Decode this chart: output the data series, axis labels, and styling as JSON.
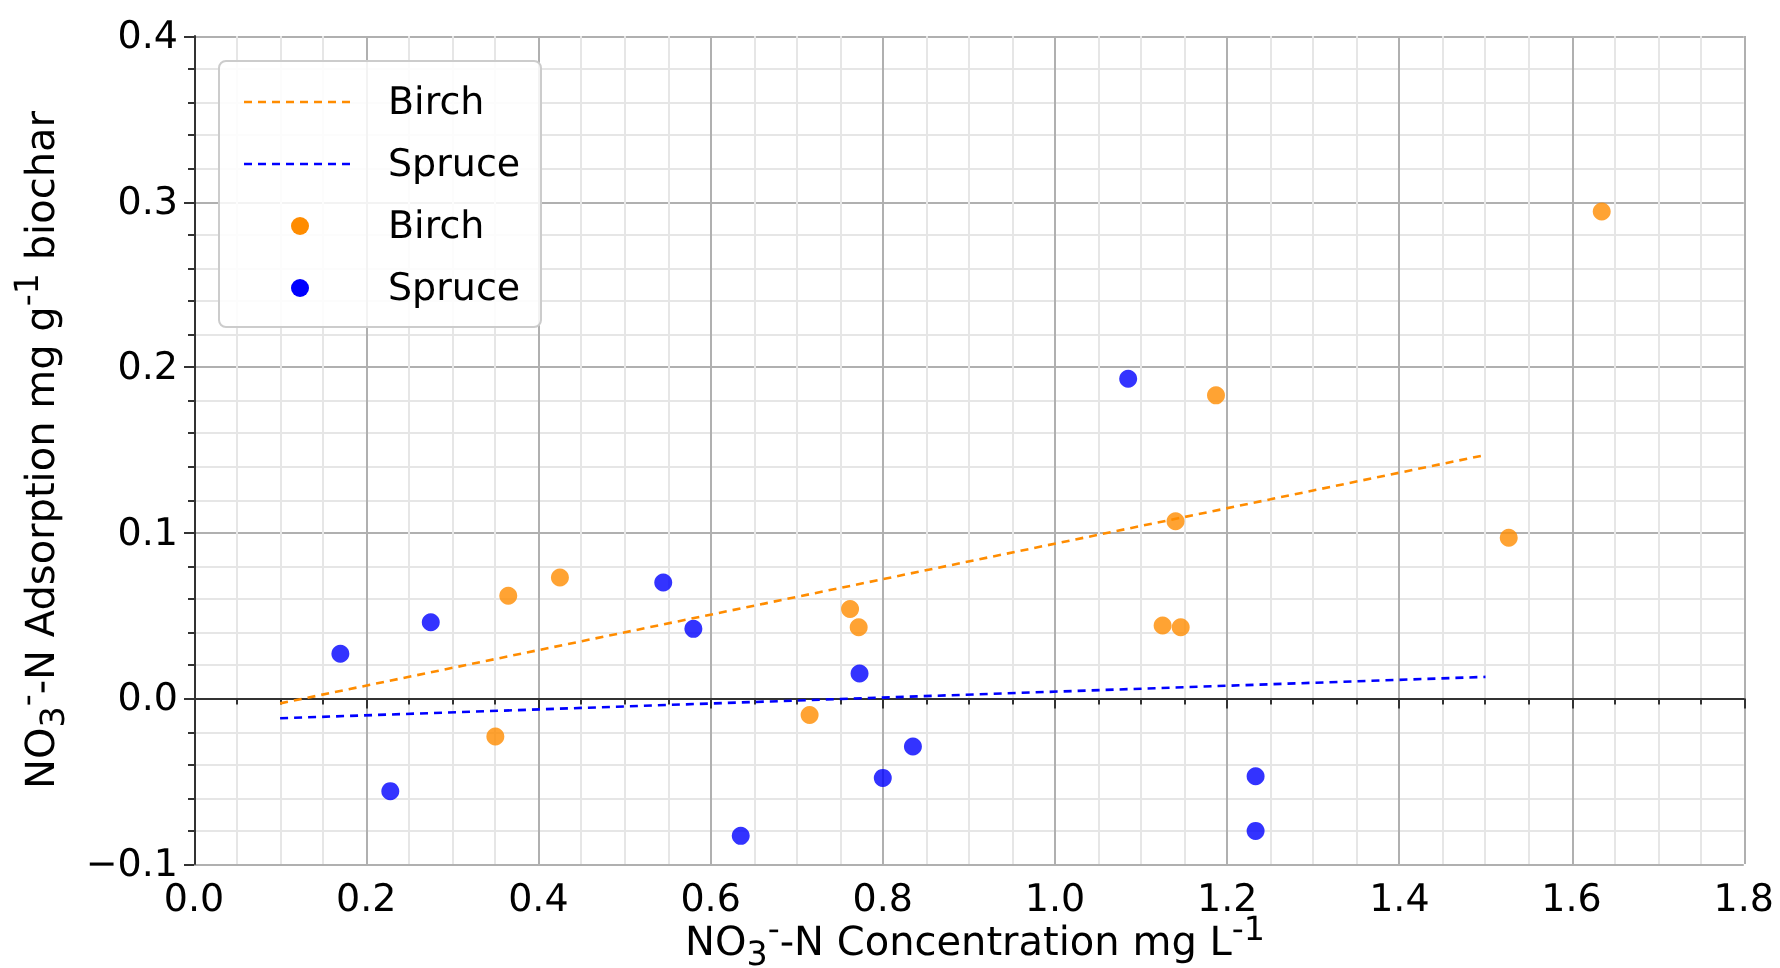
{
  "chart_data": {
    "type": "scatter",
    "xlabel": "NO$_{3}$$^{-}$-N Concentration mg L$^{-1}$",
    "ylabel": "NO$_{3}$$^{-}$-N Adsorption mg g$^{-1}$ biochar",
    "series": [
      {
        "name": "Birch",
        "type": "line",
        "marker": "none",
        "color": "#ff8c00",
        "line_style": "dashed",
        "x": [
          0.1,
          1.5
        ],
        "values": [
          -0.003,
          0.147
        ]
      },
      {
        "name": "Spruce",
        "type": "line",
        "marker": "none",
        "color": "#0000ff",
        "line_style": "dashed",
        "x": [
          0.1,
          1.5
        ],
        "values": [
          -0.012,
          0.013
        ]
      },
      {
        "name": "Birch",
        "color": "#ff8c00",
        "x": [
          0.35,
          0.365,
          0.425,
          0.715,
          0.762,
          0.772,
          1.125,
          1.146,
          1.14,
          1.187,
          1.527,
          1.635
        ],
        "values": [
          -0.023,
          0.062,
          0.073,
          -0.01,
          0.054,
          0.043,
          0.044,
          0.043,
          0.107,
          0.183,
          0.097,
          0.294
        ]
      },
      {
        "name": "Spruce",
        "color": "#0000ff",
        "x": [
          0.17,
          0.228,
          0.275,
          0.545,
          0.58,
          0.635,
          0.773,
          0.8,
          0.835,
          1.085,
          1.233,
          1.233
        ],
        "values": [
          0.027,
          -0.056,
          0.046,
          0.07,
          0.042,
          -0.083,
          0.015,
          -0.048,
          -0.029,
          0.193,
          -0.047,
          -0.08
        ]
      }
    ],
    "xlim": [
      0,
      1.8
    ],
    "xticks": [
      {
        "value": 0,
        "label": "0.0"
      },
      0.2,
      0.4,
      0.6,
      0.8,
      {
        "value": 1,
        "label": "1.0"
      },
      1.2,
      1.4,
      1.6,
      1.8
    ],
    "ylim": [
      -0.1,
      0.4
    ],
    "yticks": [
      {
        "value": -0.1,
        "label": "−0.1"
      },
      {
        "value": 0,
        "label": "0.0"
      },
      0.1,
      0.2,
      0.3,
      0.4
    ],
    "grid": true,
    "legend": "top left",
    "marker": "circle"
  }
}
